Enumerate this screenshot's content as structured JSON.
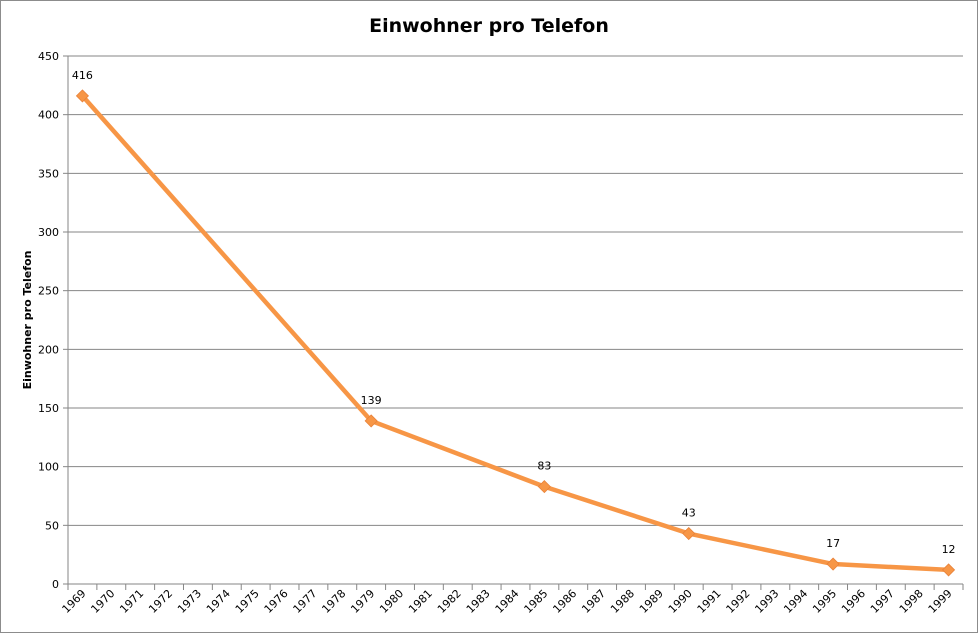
{
  "chart_data": {
    "type": "line",
    "title": "Einwohner pro Telefon",
    "xlabel": "",
    "ylabel": "Einwohner pro Telefon",
    "ylim": [
      0,
      450
    ],
    "yticks": [
      0,
      50,
      100,
      150,
      200,
      250,
      300,
      350,
      400,
      450
    ],
    "categories": [
      "1969",
      "1970",
      "1971",
      "1972",
      "1973",
      "1974",
      "1975",
      "1976",
      "1977",
      "1978",
      "1979",
      "1980",
      "1981",
      "1982",
      "1983",
      "1984",
      "1985",
      "1986",
      "1987",
      "1988",
      "1989",
      "1990",
      "1991",
      "1992",
      "1993",
      "1994",
      "1995",
      "1996",
      "1997",
      "1998",
      "1999"
    ],
    "grid": true,
    "legend": "none",
    "series": [
      {
        "color": "#f79646",
        "points": [
          {
            "x": "1969",
            "y": 416
          },
          {
            "x": "1979",
            "y": 139
          },
          {
            "x": "1985",
            "y": 83
          },
          {
            "x": "1990",
            "y": 43
          },
          {
            "x": "1995",
            "y": 17
          },
          {
            "x": "1999",
            "y": 12
          }
        ]
      }
    ]
  }
}
